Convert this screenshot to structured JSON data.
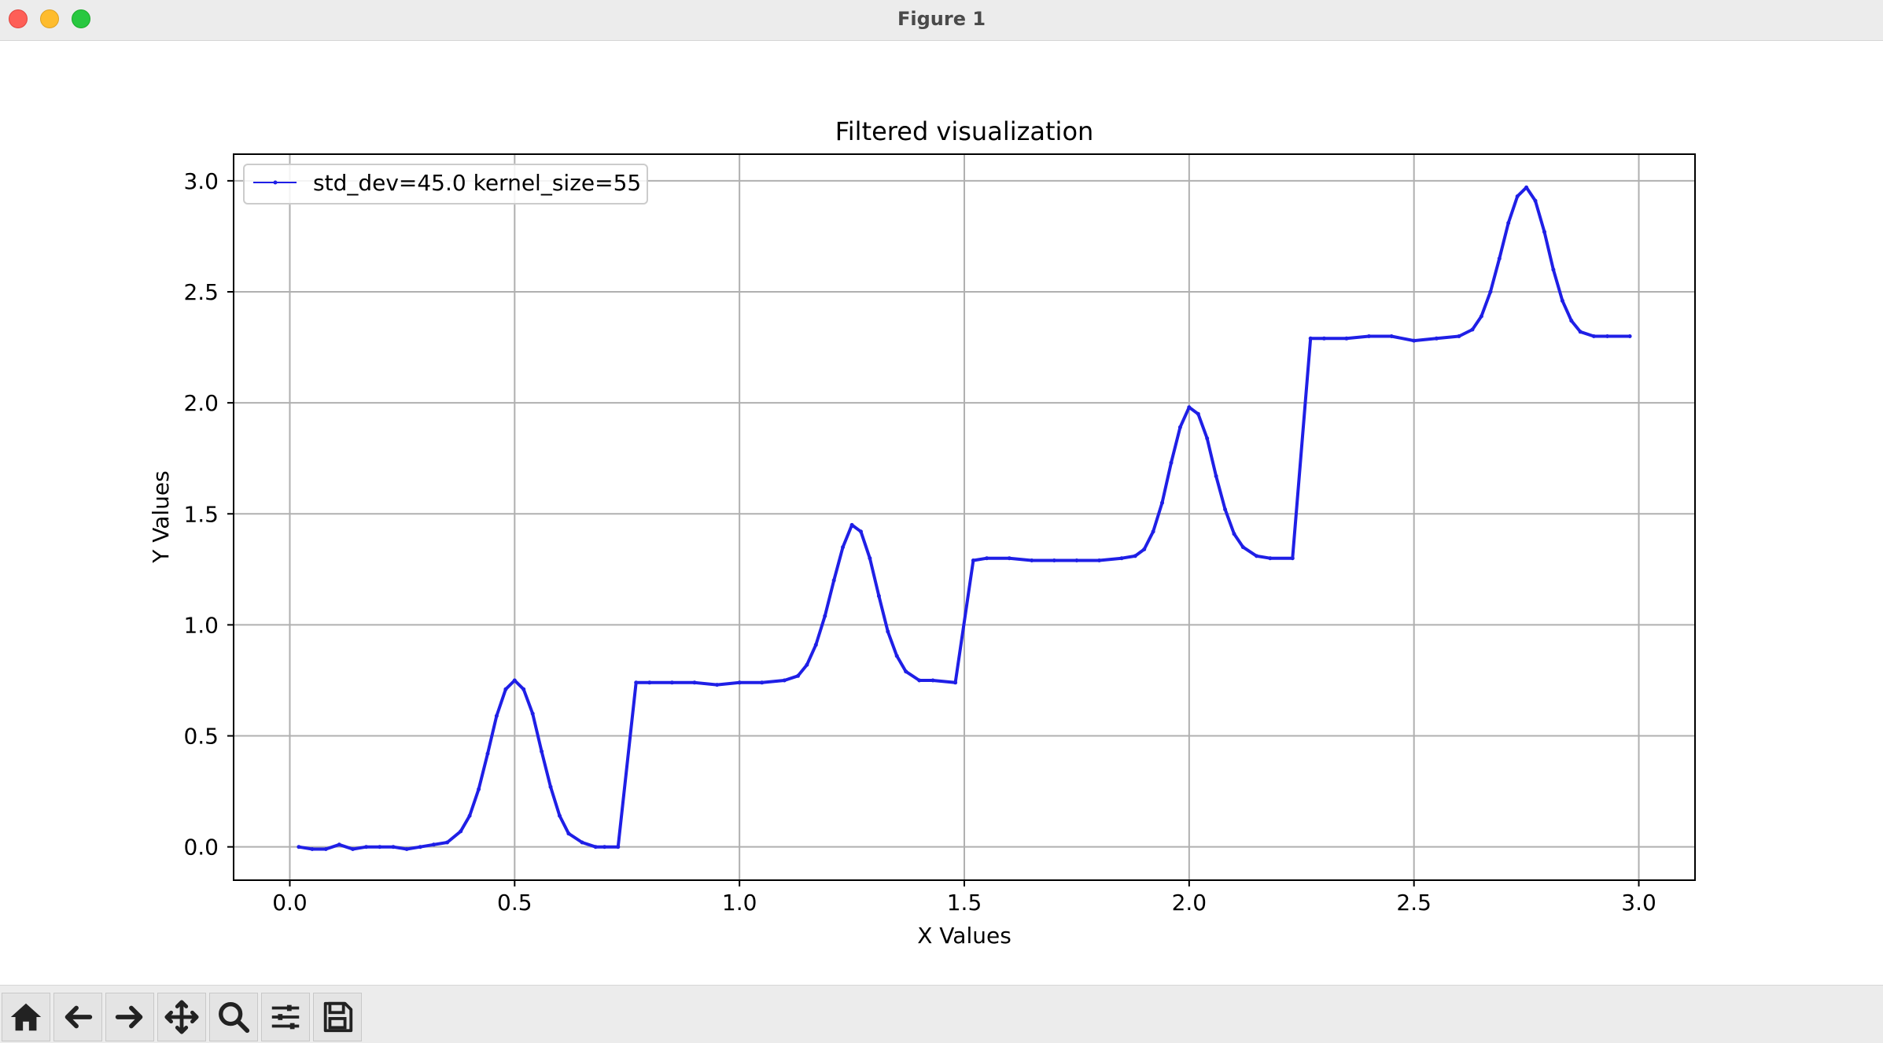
{
  "window": {
    "title": "Figure 1"
  },
  "toolbar": {
    "buttons": [
      {
        "name": "home-button",
        "icon": "home-icon"
      },
      {
        "name": "back-button",
        "icon": "arrow-left-icon"
      },
      {
        "name": "forward-button",
        "icon": "arrow-right-icon"
      },
      {
        "name": "pan-button",
        "icon": "move-icon"
      },
      {
        "name": "zoom-button",
        "icon": "search-icon"
      },
      {
        "name": "configure-subplots-button",
        "icon": "sliders-icon"
      },
      {
        "name": "save-button",
        "icon": "save-icon"
      }
    ]
  },
  "chart_data": {
    "type": "line",
    "title": "Filtered visualization",
    "xlabel": "X Values",
    "ylabel": "Y Values",
    "xlim": [
      -0.125,
      3.125
    ],
    "ylim": [
      -0.15,
      3.12
    ],
    "xticks": [
      0.0,
      0.5,
      1.0,
      1.5,
      2.0,
      2.5,
      3.0
    ],
    "xtick_labels": [
      "0.0",
      "0.5",
      "1.0",
      "1.5",
      "2.0",
      "2.5",
      "3.0"
    ],
    "yticks": [
      0.0,
      0.5,
      1.0,
      1.5,
      2.0,
      2.5,
      3.0
    ],
    "ytick_labels": [
      "0.0",
      "0.5",
      "1.0",
      "1.5",
      "2.0",
      "2.5",
      "3.0"
    ],
    "grid": true,
    "legend": {
      "position": "upper-left"
    },
    "line_color": "#1f1fe6",
    "series": [
      {
        "name": "std_dev=45.0 kernel_size=55",
        "x": [
          0.02,
          0.05,
          0.08,
          0.11,
          0.14,
          0.17,
          0.2,
          0.23,
          0.26,
          0.29,
          0.32,
          0.35,
          0.38,
          0.4,
          0.42,
          0.44,
          0.46,
          0.48,
          0.5,
          0.52,
          0.54,
          0.56,
          0.58,
          0.6,
          0.62,
          0.65,
          0.68,
          0.7,
          0.73,
          0.77,
          0.8,
          0.85,
          0.9,
          0.95,
          1.0,
          1.05,
          1.1,
          1.13,
          1.15,
          1.17,
          1.19,
          1.21,
          1.23,
          1.25,
          1.27,
          1.29,
          1.31,
          1.33,
          1.35,
          1.37,
          1.4,
          1.43,
          1.48,
          1.52,
          1.55,
          1.6,
          1.65,
          1.7,
          1.75,
          1.8,
          1.85,
          1.88,
          1.9,
          1.92,
          1.94,
          1.96,
          1.98,
          2.0,
          2.02,
          2.04,
          2.06,
          2.08,
          2.1,
          2.12,
          2.15,
          2.18,
          2.23,
          2.27,
          2.3,
          2.35,
          2.4,
          2.45,
          2.5,
          2.55,
          2.6,
          2.63,
          2.65,
          2.67,
          2.69,
          2.71,
          2.73,
          2.75,
          2.77,
          2.79,
          2.81,
          2.83,
          2.85,
          2.87,
          2.9,
          2.93,
          2.98
        ],
        "y": [
          0.0,
          -0.01,
          -0.01,
          0.01,
          -0.01,
          0.0,
          0.0,
          0.0,
          -0.01,
          0.0,
          0.01,
          0.02,
          0.07,
          0.14,
          0.26,
          0.42,
          0.59,
          0.71,
          0.75,
          0.71,
          0.6,
          0.43,
          0.27,
          0.14,
          0.06,
          0.02,
          0.0,
          0.0,
          0.0,
          0.74,
          0.74,
          0.74,
          0.74,
          0.73,
          0.74,
          0.74,
          0.75,
          0.77,
          0.82,
          0.91,
          1.04,
          1.2,
          1.35,
          1.45,
          1.42,
          1.3,
          1.13,
          0.97,
          0.86,
          0.79,
          0.75,
          0.75,
          0.74,
          1.29,
          1.3,
          1.3,
          1.29,
          1.29,
          1.29,
          1.29,
          1.3,
          1.31,
          1.34,
          1.42,
          1.55,
          1.73,
          1.89,
          1.98,
          1.95,
          1.84,
          1.67,
          1.52,
          1.41,
          1.35,
          1.31,
          1.3,
          1.3,
          2.29,
          2.29,
          2.29,
          2.3,
          2.3,
          2.28,
          2.29,
          2.3,
          2.33,
          2.39,
          2.5,
          2.65,
          2.81,
          2.93,
          2.97,
          2.91,
          2.77,
          2.6,
          2.46,
          2.37,
          2.32,
          2.3,
          2.3,
          2.3
        ]
      }
    ]
  }
}
